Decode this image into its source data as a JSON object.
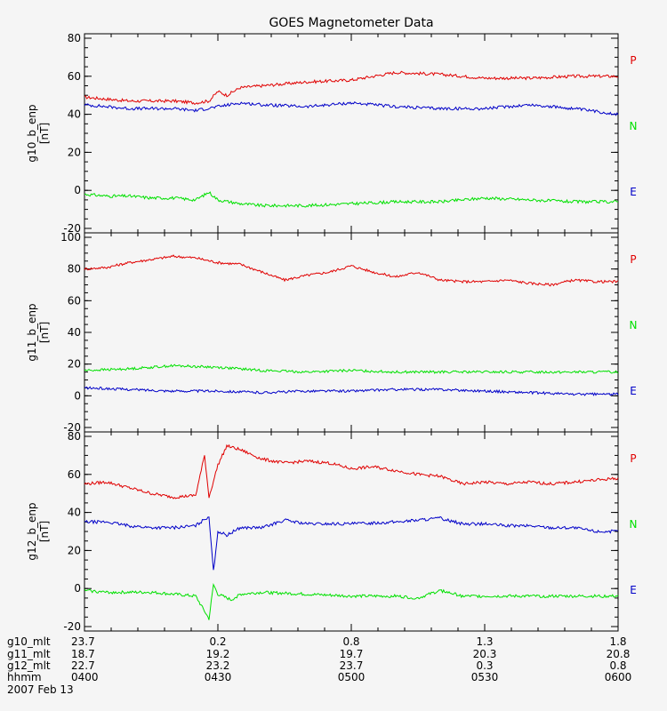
{
  "title": "GOES Magnetometer Data",
  "colors": {
    "P": "#e00000",
    "N": "#0000c8",
    "E": "#00e000",
    "axis": "#000000",
    "bg": "#f5f5f5"
  },
  "chart_data": [
    {
      "type": "line",
      "ylabel": "g10_b_enp",
      "yunit": "[nT]",
      "ylim": [
        -20,
        80
      ],
      "yticks": [
        -20,
        0,
        20,
        40,
        60,
        80
      ],
      "legend": [
        "P",
        "N",
        "E"
      ],
      "legend_colors": [
        "#e00000",
        "#00e000",
        "#0000c8"
      ],
      "series": [
        {
          "color": "#e00000",
          "x": [
            0,
            5,
            10,
            15,
            20,
            25,
            28,
            30,
            32,
            35,
            40,
            50,
            60,
            70,
            80,
            90,
            100,
            110,
            120
          ],
          "values": [
            49,
            48,
            47,
            47,
            47,
            46,
            47,
            52,
            50,
            54,
            55,
            57,
            58,
            62,
            61,
            59,
            59,
            60,
            60
          ]
        },
        {
          "color": "#0000c8",
          "x": [
            0,
            5,
            10,
            15,
            20,
            25,
            30,
            35,
            40,
            50,
            60,
            70,
            80,
            90,
            100,
            110,
            120
          ],
          "values": [
            45,
            44,
            43,
            43,
            43,
            42,
            44,
            46,
            45,
            44,
            46,
            44,
            43,
            43,
            45,
            43,
            40
          ]
        },
        {
          "color": "#00e000",
          "x": [
            0,
            5,
            10,
            15,
            20,
            25,
            28,
            30,
            35,
            40,
            50,
            60,
            70,
            80,
            90,
            100,
            110,
            120
          ],
          "values": [
            -2,
            -3,
            -3,
            -4,
            -4,
            -5,
            -1,
            -5,
            -7,
            -8,
            -8,
            -7,
            -6,
            -6,
            -4,
            -5,
            -6,
            -6
          ]
        }
      ]
    },
    {
      "type": "line",
      "ylabel": "g11_b_enp",
      "yunit": "[nT]",
      "ylim": [
        -20,
        100
      ],
      "yticks": [
        -20,
        0,
        20,
        40,
        60,
        80,
        100
      ],
      "legend": [
        "P",
        "N",
        "E"
      ],
      "legend_colors": [
        "#e00000",
        "#00e000",
        "#0000c8"
      ],
      "series": [
        {
          "color": "#e00000",
          "x": [
            0,
            5,
            10,
            15,
            20,
            25,
            30,
            35,
            40,
            45,
            50,
            55,
            60,
            65,
            70,
            75,
            80,
            85,
            90,
            95,
            100,
            105,
            110,
            115,
            120
          ],
          "values": [
            80,
            81,
            84,
            86,
            88,
            87,
            84,
            83,
            78,
            73,
            76,
            78,
            82,
            78,
            75,
            78,
            73,
            72,
            72,
            73,
            71,
            70,
            73,
            72,
            72
          ]
        },
        {
          "color": "#00e000",
          "x": [
            0,
            10,
            20,
            30,
            40,
            50,
            60,
            70,
            80,
            90,
            100,
            110,
            120
          ],
          "values": [
            16,
            17,
            19,
            18,
            16,
            15,
            16,
            15,
            15,
            15,
            15,
            15,
            15
          ]
        },
        {
          "color": "#0000c8",
          "x": [
            0,
            10,
            20,
            30,
            40,
            50,
            60,
            70,
            80,
            90,
            100,
            110,
            120
          ],
          "values": [
            5,
            4,
            3,
            3,
            2,
            3,
            3,
            4,
            4,
            3,
            2,
            1,
            1
          ]
        }
      ]
    },
    {
      "type": "line",
      "ylabel": "g12_b_enp",
      "yunit": "[nT]",
      "ylim": [
        -20,
        80
      ],
      "yticks": [
        -20,
        0,
        20,
        40,
        60,
        80
      ],
      "legend": [
        "P",
        "N",
        "E"
      ],
      "legend_colors": [
        "#e00000",
        "#00e000",
        "#0000c8"
      ],
      "series": [
        {
          "color": "#e00000",
          "x": [
            0,
            5,
            10,
            15,
            20,
            25,
            27,
            28,
            30,
            32,
            35,
            40,
            45,
            50,
            55,
            60,
            65,
            70,
            75,
            80,
            85,
            90,
            95,
            100,
            105,
            110,
            115,
            120
          ],
          "values": [
            55,
            56,
            53,
            50,
            48,
            49,
            70,
            48,
            65,
            75,
            73,
            68,
            66,
            67,
            66,
            63,
            64,
            62,
            60,
            59,
            55,
            56,
            55,
            56,
            55,
            56,
            57,
            58
          ]
        },
        {
          "color": "#0000c8",
          "x": [
            0,
            5,
            10,
            15,
            20,
            25,
            28,
            29,
            30,
            32,
            35,
            40,
            45,
            50,
            60,
            70,
            80,
            85,
            90,
            95,
            100,
            105,
            110,
            115,
            120
          ],
          "values": [
            35,
            35,
            33,
            32,
            32,
            33,
            38,
            9,
            30,
            28,
            32,
            32,
            36,
            34,
            34,
            35,
            37,
            34,
            34,
            33,
            33,
            32,
            32,
            30,
            30
          ]
        },
        {
          "color": "#00e000",
          "x": [
            0,
            5,
            10,
            15,
            20,
            25,
            28,
            29,
            30,
            33,
            35,
            40,
            50,
            60,
            70,
            75,
            80,
            85,
            90,
            95,
            100,
            105,
            110,
            115,
            120
          ],
          "values": [
            -1,
            -2,
            -2,
            -2,
            -3,
            -4,
            -16,
            2,
            -3,
            -6,
            -3,
            -2,
            -3,
            -4,
            -4,
            -5,
            -1,
            -4,
            -4,
            -4,
            -4,
            -4,
            -4,
            -4,
            -4
          ]
        }
      ]
    }
  ],
  "xaxis": {
    "tick_positions": [
      0,
      30,
      60,
      90,
      120
    ],
    "row_labels": [
      "g10_mlt",
      "g11_mlt",
      "g12_mlt",
      "hhmm"
    ],
    "rows": [
      [
        "23.7",
        "0.2",
        "0.8",
        "1.3",
        "1.8"
      ],
      [
        "18.7",
        "19.2",
        "19.7",
        "20.3",
        "20.8"
      ],
      [
        "22.7",
        "23.2",
        "23.7",
        "0.3",
        "0.8"
      ],
      [
        "0400",
        "0430",
        "0500",
        "0530",
        "0600"
      ]
    ],
    "date": "2007 Feb 13"
  }
}
